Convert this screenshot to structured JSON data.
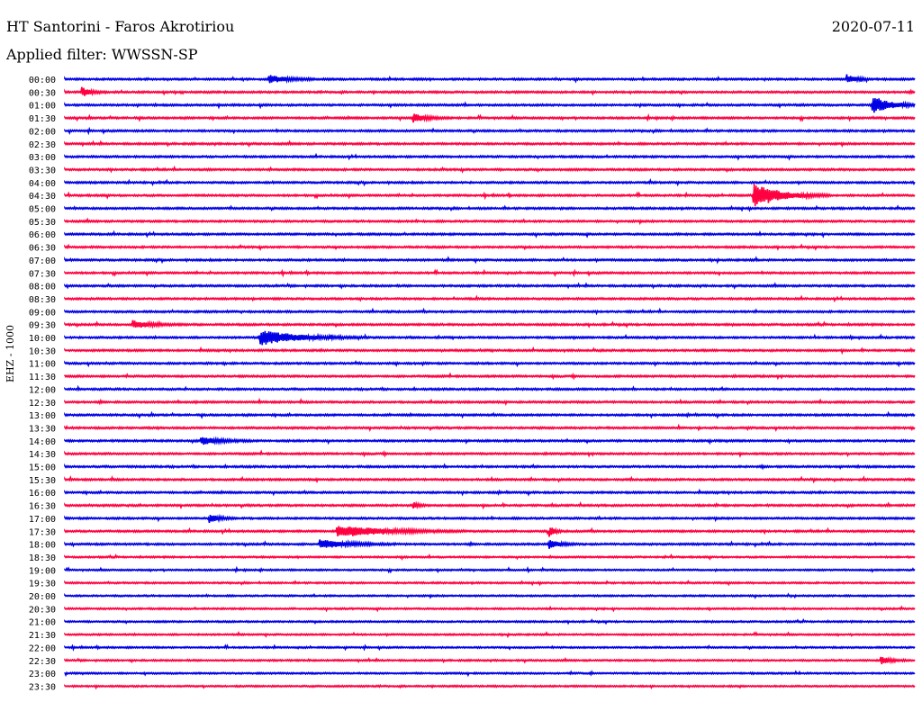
{
  "header": {
    "station": "HT Santorini - Faros Akrotiriou",
    "date": "2020-07-11",
    "filter": "Applied filter: WWSSN-SP",
    "channel": "EHZ - 1000"
  },
  "chart_data": {
    "type": "line",
    "title": "HT Santorini - Faros Akrotiriou",
    "subtitle": "Applied filter: WWSSN-SP",
    "ylabel": "EHZ - 1000",
    "colors": {
      "even": "#0000e6",
      "odd": "#ff0040"
    },
    "rows": [
      {
        "label": "00:00",
        "noise": 0.35,
        "events": [
          {
            "t": 0.24,
            "amp": 1.2,
            "dur": 0.02
          },
          {
            "t": 0.92,
            "amp": 1.3,
            "dur": 0.01
          }
        ]
      },
      {
        "label": "00:30",
        "noise": 0.35,
        "events": [
          {
            "t": 0.02,
            "amp": 1.4,
            "dur": 0.01
          }
        ]
      },
      {
        "label": "01:00",
        "noise": 0.35,
        "events": [
          {
            "t": 0.95,
            "amp": 2.6,
            "dur": 0.02
          }
        ]
      },
      {
        "label": "01:30",
        "noise": 0.35,
        "events": [
          {
            "t": 0.41,
            "amp": 1.3,
            "dur": 0.015
          }
        ]
      },
      {
        "label": "02:00",
        "noise": 0.35,
        "events": []
      },
      {
        "label": "02:30",
        "noise": 0.35,
        "events": []
      },
      {
        "label": "03:00",
        "noise": 0.35,
        "events": []
      },
      {
        "label": "03:30",
        "noise": 0.35,
        "events": []
      },
      {
        "label": "04:00",
        "noise": 0.35,
        "events": []
      },
      {
        "label": "04:30",
        "noise": 0.35,
        "events": [
          {
            "t": 0.81,
            "amp": 3.5,
            "dur": 0.03
          }
        ]
      },
      {
        "label": "05:00",
        "noise": 0.35,
        "events": []
      },
      {
        "label": "05:30",
        "noise": 0.35,
        "events": []
      },
      {
        "label": "06:00",
        "noise": 0.35,
        "events": []
      },
      {
        "label": "06:30",
        "noise": 0.35,
        "events": []
      },
      {
        "label": "07:00",
        "noise": 0.35,
        "events": []
      },
      {
        "label": "07:30",
        "noise": 0.35,
        "events": []
      },
      {
        "label": "08:00",
        "noise": 0.35,
        "events": []
      },
      {
        "label": "08:30",
        "noise": 0.35,
        "events": []
      },
      {
        "label": "09:00",
        "noise": 0.35,
        "events": []
      },
      {
        "label": "09:30",
        "noise": 0.35,
        "events": [
          {
            "t": 0.08,
            "amp": 1.2,
            "dur": 0.02
          }
        ]
      },
      {
        "label": "10:00",
        "noise": 0.35,
        "events": [
          {
            "t": 0.23,
            "amp": 2.4,
            "dur": 0.04
          }
        ]
      },
      {
        "label": "10:30",
        "noise": 0.35,
        "events": []
      },
      {
        "label": "11:00",
        "noise": 0.35,
        "events": []
      },
      {
        "label": "11:30",
        "noise": 0.35,
        "events": []
      },
      {
        "label": "12:00",
        "noise": 0.35,
        "events": []
      },
      {
        "label": "12:30",
        "noise": 0.35,
        "events": []
      },
      {
        "label": "13:00",
        "noise": 0.35,
        "events": []
      },
      {
        "label": "13:30",
        "noise": 0.35,
        "events": []
      },
      {
        "label": "14:00",
        "noise": 0.35,
        "events": [
          {
            "t": 0.16,
            "amp": 1.2,
            "dur": 0.02
          }
        ]
      },
      {
        "label": "14:30",
        "noise": 0.35,
        "events": []
      },
      {
        "label": "15:00",
        "noise": 0.35,
        "events": []
      },
      {
        "label": "15:30",
        "noise": 0.35,
        "events": []
      },
      {
        "label": "16:00",
        "noise": 0.35,
        "events": []
      },
      {
        "label": "16:30",
        "noise": 0.35,
        "events": [
          {
            "t": 0.41,
            "amp": 1.3,
            "dur": 0.005
          }
        ]
      },
      {
        "label": "17:00",
        "noise": 0.35,
        "events": [
          {
            "t": 0.17,
            "amp": 1.4,
            "dur": 0.01
          }
        ]
      },
      {
        "label": "17:30",
        "noise": 0.35,
        "events": [
          {
            "t": 0.32,
            "amp": 1.8,
            "dur": 0.05
          },
          {
            "t": 0.57,
            "amp": 2.0,
            "dur": 0.005
          }
        ]
      },
      {
        "label": "18:00",
        "noise": 0.35,
        "events": [
          {
            "t": 0.3,
            "amp": 1.4,
            "dur": 0.03
          },
          {
            "t": 0.57,
            "amp": 1.5,
            "dur": 0.01
          }
        ]
      },
      {
        "label": "18:30",
        "noise": 0.3,
        "events": []
      },
      {
        "label": "19:00",
        "noise": 0.3,
        "events": []
      },
      {
        "label": "19:30",
        "noise": 0.3,
        "events": []
      },
      {
        "label": "20:00",
        "noise": 0.3,
        "events": []
      },
      {
        "label": "20:30",
        "noise": 0.3,
        "events": []
      },
      {
        "label": "21:00",
        "noise": 0.3,
        "events": []
      },
      {
        "label": "21:30",
        "noise": 0.3,
        "events": []
      },
      {
        "label": "22:00",
        "noise": 0.3,
        "events": []
      },
      {
        "label": "22:30",
        "noise": 0.3,
        "events": [
          {
            "t": 0.96,
            "amp": 1.2,
            "dur": 0.01
          }
        ]
      },
      {
        "label": "23:00",
        "noise": 0.3,
        "events": []
      },
      {
        "label": "23:30",
        "noise": 0.3,
        "events": []
      }
    ]
  }
}
